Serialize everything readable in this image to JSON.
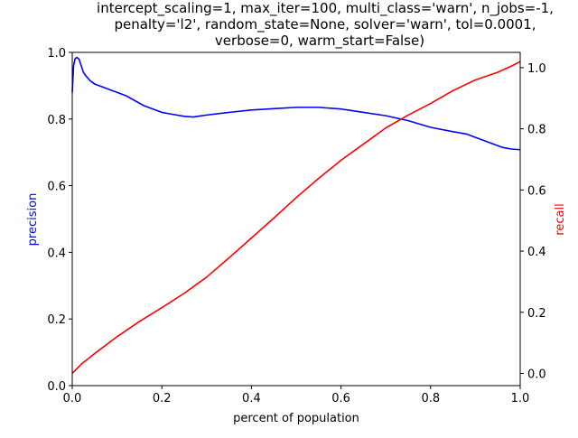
{
  "chart_data": {
    "type": "line",
    "title_lines": [
      "intercept_scaling=1, max_iter=100, multi_class='warn', n_jobs=-1,",
      "penalty='l2', random_state=None, solver='warn', tol=0.0001,",
      "verbose=0, warm_start=False)"
    ],
    "xlabel": "percent of population",
    "ylabel_left": "precision",
    "ylabel_right": "recall",
    "xlim": [
      0.0,
      1.0
    ],
    "ylim_left": [
      0.0,
      1.0
    ],
    "ylim_right": [
      -0.04,
      1.05
    ],
    "x_ticks": [
      "0.0",
      "0.2",
      "0.4",
      "0.6",
      "0.8",
      "1.0"
    ],
    "y_ticks_left": [
      "0.0",
      "0.2",
      "0.4",
      "0.6",
      "0.8",
      "1.0"
    ],
    "y_ticks_right": [
      "0.0",
      "0.2",
      "0.4",
      "0.6",
      "0.8",
      "1.0"
    ],
    "grid": false,
    "series": [
      {
        "name": "precision",
        "axis": "left",
        "color": "#0000ff",
        "x": [
          0.0,
          0.003,
          0.006,
          0.01,
          0.015,
          0.02,
          0.025,
          0.03,
          0.04,
          0.05,
          0.07,
          0.09,
          0.1,
          0.12,
          0.14,
          0.16,
          0.18,
          0.2,
          0.22,
          0.25,
          0.27,
          0.3,
          0.35,
          0.4,
          0.45,
          0.5,
          0.55,
          0.6,
          0.65,
          0.7,
          0.75,
          0.8,
          0.85,
          0.88,
          0.9,
          0.92,
          0.94,
          0.96,
          0.98,
          1.0
        ],
        "y": [
          0.88,
          0.96,
          0.98,
          0.985,
          0.98,
          0.96,
          0.94,
          0.93,
          0.915,
          0.905,
          0.895,
          0.885,
          0.88,
          0.87,
          0.855,
          0.84,
          0.83,
          0.82,
          0.815,
          0.808,
          0.806,
          0.812,
          0.82,
          0.827,
          0.831,
          0.835,
          0.835,
          0.83,
          0.82,
          0.81,
          0.795,
          0.775,
          0.762,
          0.755,
          0.745,
          0.735,
          0.725,
          0.715,
          0.71,
          0.708
        ]
      },
      {
        "name": "recall",
        "axis": "right",
        "color": "#ff0000",
        "x": [
          0.0,
          0.02,
          0.05,
          0.1,
          0.15,
          0.2,
          0.25,
          0.3,
          0.35,
          0.4,
          0.45,
          0.5,
          0.55,
          0.6,
          0.65,
          0.7,
          0.75,
          0.8,
          0.85,
          0.9,
          0.95,
          0.98,
          1.0
        ],
        "y": [
          0.0,
          0.03,
          0.065,
          0.12,
          0.17,
          0.215,
          0.262,
          0.315,
          0.378,
          0.443,
          0.508,
          0.575,
          0.638,
          0.697,
          0.75,
          0.803,
          0.845,
          0.883,
          0.925,
          0.96,
          0.985,
          1.005,
          1.02
        ]
      }
    ]
  }
}
